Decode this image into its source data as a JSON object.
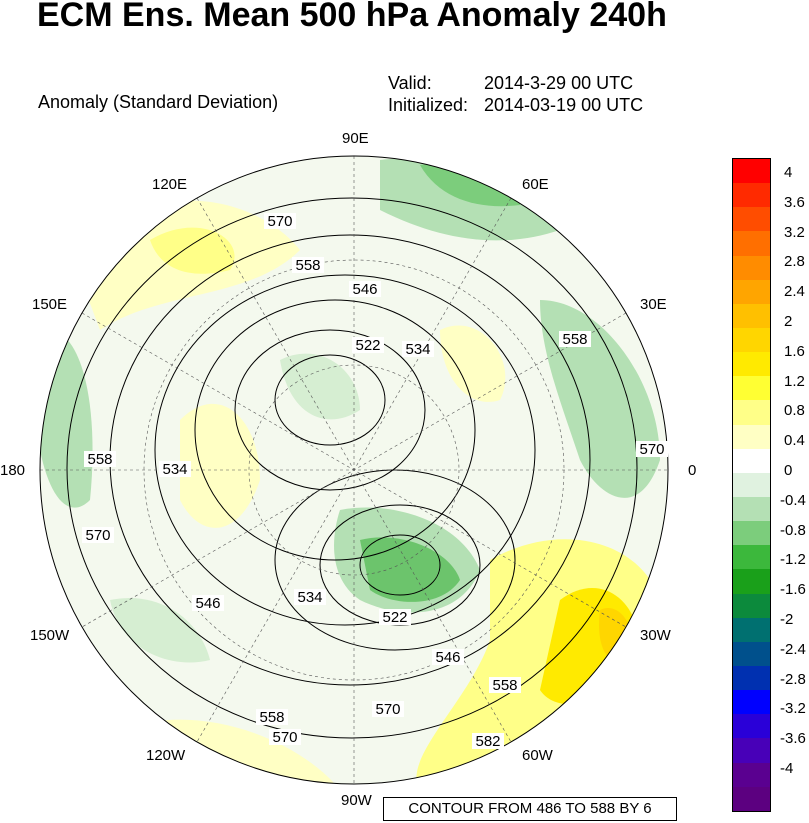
{
  "title": "ECM Ens. Mean 500 hPa Anomaly 240h",
  "subtitle": "Anomaly (Standard Deviation)",
  "valid_label": "Valid:",
  "valid_value": "2014-3-29 00 UTC",
  "initialized_label": "Initialized:",
  "initialized_value": "2014-03-19 00 UTC",
  "contour_note": "CONTOUR FROM 486 TO 588 BY 6",
  "longitude_labels": [
    "90E",
    "60E",
    "120E",
    "30E",
    "150E",
    "180",
    "0",
    "150W",
    "30W",
    "120W",
    "60W",
    "90W"
  ],
  "contour_labels": [
    "570",
    "558",
    "546",
    "522",
    "534",
    "558",
    "570",
    "558",
    "534",
    "570",
    "546",
    "534",
    "522",
    "546",
    "558",
    "570",
    "558",
    "570",
    "582"
  ],
  "colorbar": {
    "labels": [
      "4",
      "3.6",
      "3.2",
      "2.8",
      "2.4",
      "2",
      "1.6",
      "1.2",
      "0.8",
      "0.4",
      "0",
      "-0.4",
      "-0.8",
      "-1.2",
      "-1.6",
      "-2",
      "-2.4",
      "-2.8",
      "-3.2",
      "-3.6",
      "-4"
    ],
    "colors": [
      "#ff0000",
      "#ff2a00",
      "#ff4d00",
      "#ff6f00",
      "#ff8c00",
      "#ffa500",
      "#ffc000",
      "#ffd600",
      "#ffea00",
      "#ffff33",
      "#ffff88",
      "#ffffc4",
      "#ffffff",
      "#e0f2e0",
      "#b4e0b4",
      "#7ccd7c",
      "#3cb83c",
      "#1aa01a",
      "#0c8a3c",
      "#007070",
      "#00508c",
      "#0030b0",
      "#0000ff",
      "#2a00d8",
      "#4800b8",
      "#5a0090",
      "#5c0080"
    ]
  },
  "map_colors": {
    "ocean_neutral": "#f2f9ef",
    "pos_weak": "#ffffc4",
    "pos_mid": "#ffff88",
    "pos_strong": "#ffea00",
    "neg_weak": "#d6eed2",
    "neg_mid": "#b4e0b4",
    "neg_strong": "#6cc46c"
  }
}
